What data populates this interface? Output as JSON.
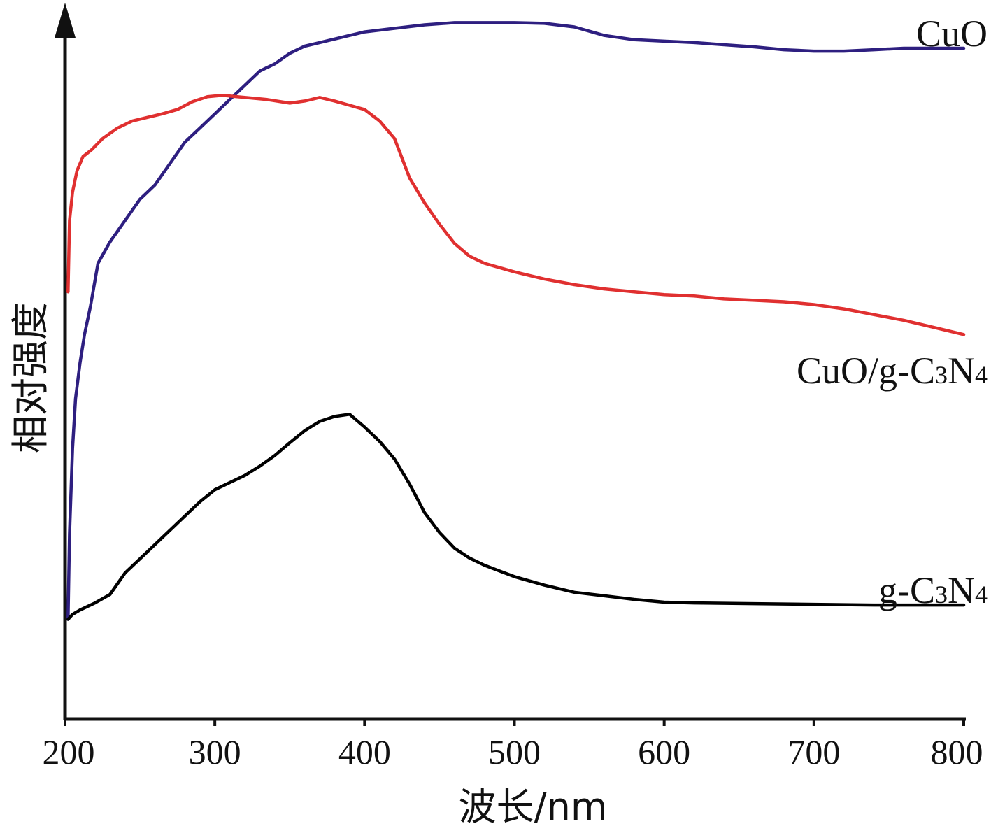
{
  "chart_data": {
    "type": "line",
    "xlabel": "波长/nm",
    "ylabel": "相对强度",
    "xlim": [
      200,
      800
    ],
    "ylim": [
      0,
      1
    ],
    "xticks": [
      200,
      300,
      400,
      500,
      600,
      700,
      800
    ],
    "grid": false,
    "legend": "none (labels placed at the right end of each curve)",
    "series": [
      {
        "name": "CuO",
        "label_parts": [
          "CuO"
        ],
        "color": "#2e1f80",
        "points": [
          [
            202,
            0.14
          ],
          [
            203,
            0.26
          ],
          [
            205,
            0.38
          ],
          [
            207,
            0.45
          ],
          [
            210,
            0.5
          ],
          [
            213,
            0.54
          ],
          [
            217,
            0.58
          ],
          [
            222,
            0.64
          ],
          [
            230,
            0.67
          ],
          [
            240,
            0.7
          ],
          [
            250,
            0.73
          ],
          [
            260,
            0.75
          ],
          [
            270,
            0.78
          ],
          [
            280,
            0.81
          ],
          [
            290,
            0.83
          ],
          [
            300,
            0.85
          ],
          [
            310,
            0.87
          ],
          [
            320,
            0.89
          ],
          [
            330,
            0.91
          ],
          [
            340,
            0.92
          ],
          [
            350,
            0.935
          ],
          [
            360,
            0.945
          ],
          [
            370,
            0.95
          ],
          [
            380,
            0.955
          ],
          [
            390,
            0.96
          ],
          [
            400,
            0.965
          ],
          [
            420,
            0.97
          ],
          [
            440,
            0.975
          ],
          [
            460,
            0.978
          ],
          [
            480,
            0.978
          ],
          [
            500,
            0.978
          ],
          [
            520,
            0.977
          ],
          [
            540,
            0.972
          ],
          [
            560,
            0.96
          ],
          [
            580,
            0.954
          ],
          [
            600,
            0.952
          ],
          [
            620,
            0.95
          ],
          [
            640,
            0.947
          ],
          [
            660,
            0.944
          ],
          [
            680,
            0.94
          ],
          [
            700,
            0.938
          ],
          [
            720,
            0.938
          ],
          [
            740,
            0.94
          ],
          [
            760,
            0.942
          ],
          [
            780,
            0.942
          ],
          [
            800,
            0.942
          ]
        ]
      },
      {
        "name": "CuO/g-C3N4",
        "label_parts": [
          "CuO/g-C",
          "3",
          "N",
          "4"
        ],
        "color": "#e03030",
        "points": [
          [
            202,
            0.6
          ],
          [
            203,
            0.7
          ],
          [
            205,
            0.74
          ],
          [
            208,
            0.77
          ],
          [
            212,
            0.79
          ],
          [
            218,
            0.8
          ],
          [
            225,
            0.815
          ],
          [
            235,
            0.83
          ],
          [
            245,
            0.84
          ],
          [
            255,
            0.845
          ],
          [
            265,
            0.85
          ],
          [
            275,
            0.856
          ],
          [
            285,
            0.867
          ],
          [
            295,
            0.874
          ],
          [
            305,
            0.876
          ],
          [
            320,
            0.873
          ],
          [
            335,
            0.87
          ],
          [
            350,
            0.865
          ],
          [
            360,
            0.868
          ],
          [
            370,
            0.873
          ],
          [
            380,
            0.868
          ],
          [
            390,
            0.862
          ],
          [
            400,
            0.856
          ],
          [
            410,
            0.84
          ],
          [
            420,
            0.815
          ],
          [
            430,
            0.76
          ],
          [
            440,
            0.725
          ],
          [
            450,
            0.695
          ],
          [
            460,
            0.668
          ],
          [
            470,
            0.65
          ],
          [
            480,
            0.64
          ],
          [
            500,
            0.628
          ],
          [
            520,
            0.618
          ],
          [
            540,
            0.61
          ],
          [
            560,
            0.604
          ],
          [
            580,
            0.6
          ],
          [
            600,
            0.596
          ],
          [
            620,
            0.594
          ],
          [
            640,
            0.59
          ],
          [
            660,
            0.588
          ],
          [
            680,
            0.586
          ],
          [
            700,
            0.582
          ],
          [
            720,
            0.576
          ],
          [
            740,
            0.568
          ],
          [
            760,
            0.56
          ],
          [
            780,
            0.55
          ],
          [
            800,
            0.54
          ]
        ]
      },
      {
        "name": "g-C3N4",
        "label_parts": [
          "g-C",
          "3",
          "N",
          "4"
        ],
        "color": "#000000",
        "points": [
          [
            202,
            0.14
          ],
          [
            205,
            0.147
          ],
          [
            210,
            0.153
          ],
          [
            220,
            0.163
          ],
          [
            230,
            0.175
          ],
          [
            240,
            0.205
          ],
          [
            250,
            0.225
          ],
          [
            260,
            0.245
          ],
          [
            270,
            0.265
          ],
          [
            280,
            0.285
          ],
          [
            290,
            0.305
          ],
          [
            300,
            0.322
          ],
          [
            310,
            0.332
          ],
          [
            320,
            0.342
          ],
          [
            330,
            0.355
          ],
          [
            340,
            0.37
          ],
          [
            350,
            0.388
          ],
          [
            360,
            0.405
          ],
          [
            370,
            0.418
          ],
          [
            380,
            0.425
          ],
          [
            390,
            0.428
          ],
          [
            400,
            0.41
          ],
          [
            410,
            0.39
          ],
          [
            420,
            0.365
          ],
          [
            430,
            0.33
          ],
          [
            440,
            0.29
          ],
          [
            450,
            0.262
          ],
          [
            460,
            0.24
          ],
          [
            470,
            0.226
          ],
          [
            480,
            0.216
          ],
          [
            490,
            0.208
          ],
          [
            500,
            0.2
          ],
          [
            520,
            0.188
          ],
          [
            540,
            0.178
          ],
          [
            560,
            0.173
          ],
          [
            580,
            0.168
          ],
          [
            600,
            0.164
          ],
          [
            620,
            0.163
          ],
          [
            660,
            0.162
          ],
          [
            700,
            0.161
          ],
          [
            740,
            0.16
          ],
          [
            800,
            0.16
          ]
        ]
      }
    ]
  }
}
